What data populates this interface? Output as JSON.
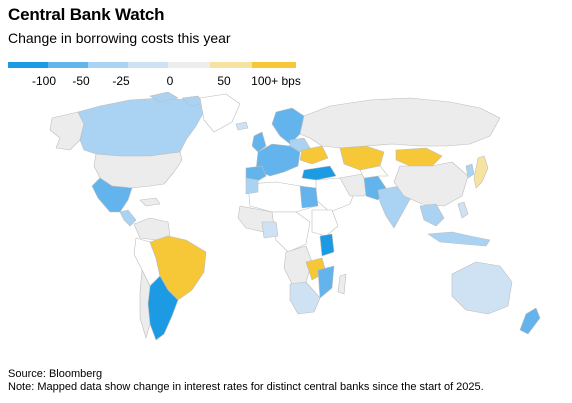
{
  "header": {
    "title": "Central Bank Watch",
    "subtitle": "Change in borrowing costs this year"
  },
  "legend": {
    "items": [
      {
        "label": "-100",
        "color": "#1c9be4"
      },
      {
        "label": "-50",
        "color": "#63b4ec"
      },
      {
        "label": "-25",
        "color": "#a9d2f3"
      },
      {
        "label": "0",
        "color": "#cfe2f4"
      },
      {
        "label": "",
        "color": "#ededed"
      },
      {
        "label": "50",
        "color": "#f7e3a1"
      },
      {
        "label": "100+ bps",
        "color": "#f6c736"
      }
    ]
  },
  "map": {
    "colors": {
      "no_data": "#ffffff",
      "neutral": "#ececec",
      "border": "#bdbdbd",
      "cut_large": "#1c9be4",
      "cut_medium": "#63b4ec",
      "cut_small": "#a9d2f3",
      "cut_slight": "#cfe2f4",
      "hike_small": "#f7e3a1",
      "hike_large": "#f6c736"
    }
  },
  "footer": {
    "source": "Source: Bloomberg",
    "note": "Note: Mapped data show change in interest rates for distinct central banks since the start of 2025."
  }
}
